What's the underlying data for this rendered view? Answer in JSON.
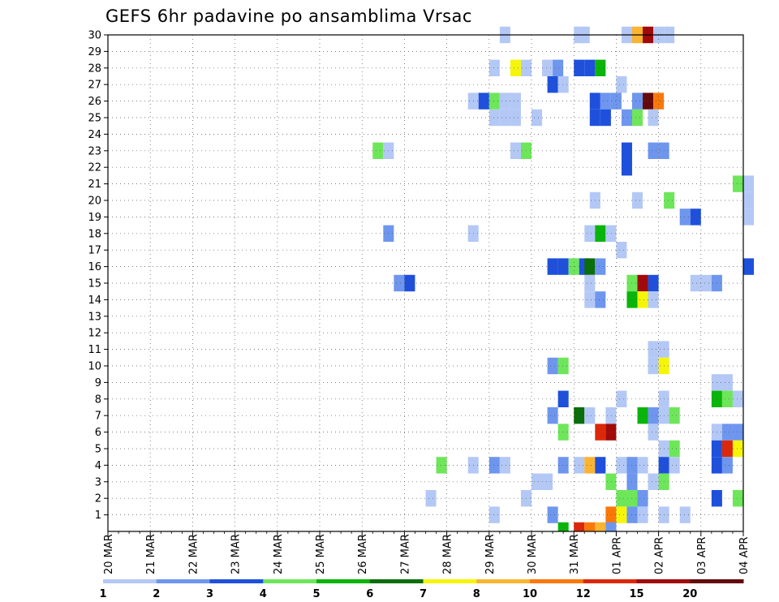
{
  "chart_data": {
    "type": "heatmap",
    "title": "GEFS 6hr padavine po ansamblima Vrsac",
    "xlabel": "",
    "ylabel": "",
    "x_tick_labels": [
      "20 MAR",
      "21 MAR",
      "22 MAR",
      "23 MAR",
      "24 MAR",
      "25 MAR",
      "26 MAR",
      "27 MAR",
      "28 MAR",
      "29 MAR",
      "30 MAR",
      "31 MAR",
      "01 APR",
      "02 APR",
      "03 APR",
      "04 APR"
    ],
    "y_tick_labels": [
      "1",
      "2",
      "3",
      "4",
      "5",
      "6",
      "7",
      "8",
      "9",
      "10",
      "11",
      "12",
      "13",
      "14",
      "15",
      "16",
      "17",
      "18",
      "19",
      "20",
      "21",
      "22",
      "23",
      "24",
      "25",
      "26",
      "27",
      "28",
      "29",
      "30"
    ],
    "xlim": [
      "20 MAR",
      "04 APR"
    ],
    "ylim": [
      0,
      30
    ],
    "grid": true,
    "colorbar": {
      "labels": [
        "1",
        "2",
        "3",
        "4",
        "5",
        "6",
        "7",
        "8",
        "10",
        "12",
        "15",
        "20"
      ],
      "colors": [
        "#b4c8f5",
        "#6e96ee",
        "#1e50dc",
        "#6ee65a",
        "#0ab40a",
        "#0a6e0a",
        "#f5f50a",
        "#fab432",
        "#fa780a",
        "#dc280a",
        "#a00a0a",
        "#640a0a"
      ]
    },
    "cells": [
      [
        29.375,
        30,
        1
      ],
      [
        31.125,
        30,
        1
      ],
      [
        31.25,
        30,
        1
      ],
      [
        32.25,
        30,
        1
      ],
      [
        32.5,
        30,
        8
      ],
      [
        32.75,
        30,
        11
      ],
      [
        33,
        30,
        1
      ],
      [
        33.25,
        30,
        1
      ],
      [
        29.125,
        28,
        1
      ],
      [
        29.625,
        28,
        7
      ],
      [
        29.875,
        28,
        1
      ],
      [
        30.375,
        28,
        1
      ],
      [
        30.625,
        28,
        2
      ],
      [
        31.125,
        28,
        3
      ],
      [
        31.375,
        28,
        3
      ],
      [
        31.625,
        28,
        5
      ],
      [
        30.5,
        27,
        3
      ],
      [
        30.75,
        27,
        1
      ],
      [
        32.125,
        27,
        1
      ],
      [
        28.625,
        26,
        1
      ],
      [
        28.875,
        26,
        3
      ],
      [
        29.125,
        26,
        4
      ],
      [
        29.375,
        26,
        1
      ],
      [
        29.625,
        26,
        1
      ],
      [
        31.5,
        26,
        3
      ],
      [
        31.75,
        26,
        2
      ],
      [
        32.0,
        26,
        2
      ],
      [
        32.5,
        26,
        2
      ],
      [
        32.75,
        26,
        12
      ],
      [
        33,
        26,
        9
      ],
      [
        29.125,
        25,
        1
      ],
      [
        29.375,
        25,
        1
      ],
      [
        29.625,
        25,
        1
      ],
      [
        30.125,
        25,
        1
      ],
      [
        31.5,
        25,
        3
      ],
      [
        31.75,
        25,
        3
      ],
      [
        32.25,
        25,
        2
      ],
      [
        32.5,
        25,
        4
      ],
      [
        32.875,
        25,
        1
      ],
      [
        26.375,
        23,
        4
      ],
      [
        26.625,
        23,
        1
      ],
      [
        29.625,
        23,
        1
      ],
      [
        29.875,
        23,
        4
      ],
      [
        32.25,
        23,
        3
      ],
      [
        32.875,
        23,
        2
      ],
      [
        33.125,
        23,
        2
      ],
      [
        32.25,
        22,
        3
      ],
      [
        34.875,
        21,
        4
      ],
      [
        35.125,
        21,
        1
      ],
      [
        31.5,
        20,
        1
      ],
      [
        32.5,
        20,
        1
      ],
      [
        33.25,
        20,
        4
      ],
      [
        35.125,
        20,
        1
      ],
      [
        33.625,
        19,
        2
      ],
      [
        33.875,
        19,
        3
      ],
      [
        35.125,
        19,
        1
      ],
      [
        26.625,
        18,
        2
      ],
      [
        28.625,
        18,
        1
      ],
      [
        31.375,
        18,
        1
      ],
      [
        31.625,
        18,
        5
      ],
      [
        31.875,
        18,
        1
      ],
      [
        32.125,
        17,
        1
      ],
      [
        30.5,
        16,
        3
      ],
      [
        30.75,
        16,
        3
      ],
      [
        31.0,
        16,
        4
      ],
      [
        31.25,
        16,
        3
      ],
      [
        31.375,
        16,
        6
      ],
      [
        31.625,
        16,
        2
      ],
      [
        35.125,
        16,
        3
      ],
      [
        26.875,
        15,
        2
      ],
      [
        27.125,
        15,
        3
      ],
      [
        31.375,
        15,
        1
      ],
      [
        32.375,
        15,
        4
      ],
      [
        32.625,
        15,
        11
      ],
      [
        32.875,
        15,
        3
      ],
      [
        33.875,
        15,
        1
      ],
      [
        34.125,
        15,
        1
      ],
      [
        34.375,
        15,
        2
      ],
      [
        31.375,
        14,
        1
      ],
      [
        31.625,
        14,
        2
      ],
      [
        32.375,
        14,
        5
      ],
      [
        32.625,
        14,
        7
      ],
      [
        32.875,
        14,
        1
      ],
      [
        32.875,
        11,
        1
      ],
      [
        33.125,
        11,
        1
      ],
      [
        30.5,
        10,
        2
      ],
      [
        30.75,
        10,
        4
      ],
      [
        32.875,
        10,
        1
      ],
      [
        33.125,
        10,
        7
      ],
      [
        34.375,
        9,
        1
      ],
      [
        34.625,
        9,
        1
      ],
      [
        30.75,
        8,
        3
      ],
      [
        32.125,
        8,
        1
      ],
      [
        33.125,
        8,
        1
      ],
      [
        34.375,
        8,
        5
      ],
      [
        34.625,
        8,
        4
      ],
      [
        34.875,
        8,
        1
      ],
      [
        30.5,
        7,
        2
      ],
      [
        31.125,
        7,
        6
      ],
      [
        31.375,
        7,
        1
      ],
      [
        31.875,
        7,
        1
      ],
      [
        32.625,
        7,
        5
      ],
      [
        32.875,
        7,
        2
      ],
      [
        33.125,
        7,
        1
      ],
      [
        33.375,
        7,
        4
      ],
      [
        30.75,
        6,
        4
      ],
      [
        31.625,
        6,
        10
      ],
      [
        31.875,
        6,
        11
      ],
      [
        32.875,
        6,
        1
      ],
      [
        34.375,
        6,
        1
      ],
      [
        34.625,
        6,
        2
      ],
      [
        34.875,
        6,
        2
      ],
      [
        33.125,
        5,
        1
      ],
      [
        33.375,
        5,
        4
      ],
      [
        34.375,
        5,
        3
      ],
      [
        34.625,
        5,
        10
      ],
      [
        34.875,
        5,
        7
      ],
      [
        27.875,
        4,
        4
      ],
      [
        28.625,
        4,
        1
      ],
      [
        29.125,
        4,
        2
      ],
      [
        29.375,
        4,
        1
      ],
      [
        30.75,
        4,
        2
      ],
      [
        31.125,
        4,
        1
      ],
      [
        31.375,
        4,
        8
      ],
      [
        31.625,
        4,
        3
      ],
      [
        32.125,
        4,
        1
      ],
      [
        32.375,
        4,
        2
      ],
      [
        32.625,
        4,
        1
      ],
      [
        33.125,
        4,
        3
      ],
      [
        33.375,
        4,
        1
      ],
      [
        34.375,
        4,
        3
      ],
      [
        34.625,
        4,
        2
      ],
      [
        30.125,
        3,
        1
      ],
      [
        30.375,
        3,
        1
      ],
      [
        31.875,
        3,
        4
      ],
      [
        32.375,
        3,
        2
      ],
      [
        32.875,
        3,
        1
      ],
      [
        33.125,
        3,
        4
      ],
      [
        27.625,
        2,
        1
      ],
      [
        29.875,
        2,
        1
      ],
      [
        32.125,
        2,
        4
      ],
      [
        32.375,
        2,
        4
      ],
      [
        32.625,
        2,
        2
      ],
      [
        34.375,
        2,
        3
      ],
      [
        34.875,
        2,
        4
      ],
      [
        29.125,
        1,
        1
      ],
      [
        30.5,
        1,
        2
      ],
      [
        31.875,
        1,
        9
      ],
      [
        32.125,
        1,
        7
      ],
      [
        32.375,
        1,
        2
      ],
      [
        32.625,
        1,
        1
      ],
      [
        33.125,
        1,
        1
      ],
      [
        33.625,
        1,
        1
      ],
      [
        30.75,
        0,
        5
      ],
      [
        31.125,
        0,
        10
      ],
      [
        31.375,
        0,
        9
      ],
      [
        31.625,
        0,
        8
      ],
      [
        31.875,
        0,
        2
      ]
    ]
  }
}
